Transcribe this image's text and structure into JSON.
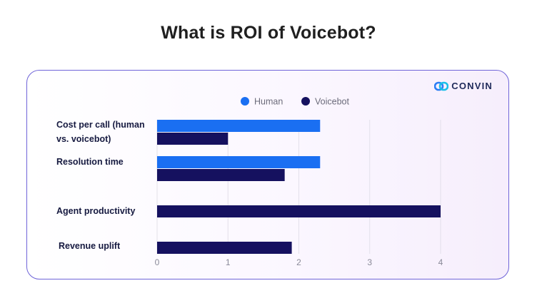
{
  "page": {
    "title": "What is ROI of Voicebot?"
  },
  "brand": {
    "name": "CONVIN"
  },
  "chart_data": {
    "type": "bar",
    "orientation": "horizontal",
    "title": "",
    "xlabel": "",
    "ylabel": "",
    "categories": [
      "Cost per call (human vs. voicebot)",
      "Resolution time",
      "Agent productivity",
      "Revenue uplift"
    ],
    "series": [
      {
        "name": "Human",
        "color": "#1a6ff2",
        "values": [
          2.3,
          2.3,
          null,
          null
        ]
      },
      {
        "name": "Voicebot",
        "color": "#15115f",
        "values": [
          1.0,
          1.8,
          4.0,
          1.9
        ]
      }
    ],
    "xlim": [
      0,
      4
    ],
    "xticks": [
      0,
      1,
      2,
      3,
      4
    ],
    "grid": true,
    "legend_position": "top"
  }
}
